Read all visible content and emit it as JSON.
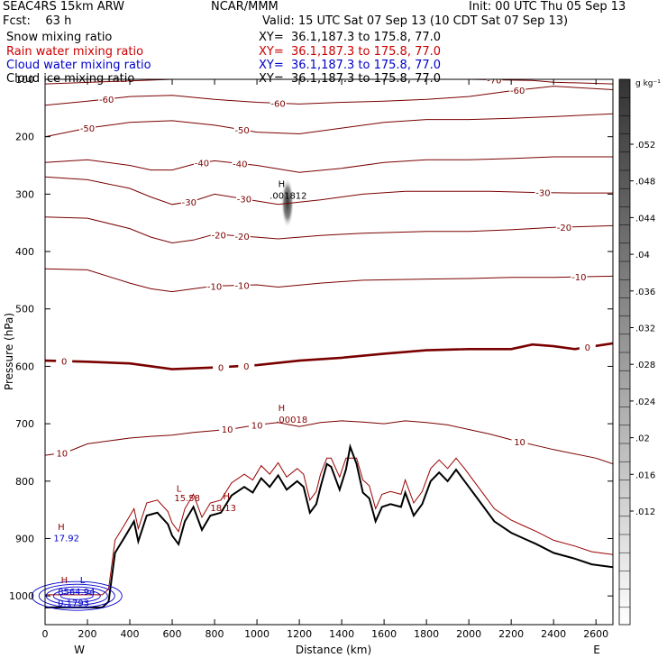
{
  "header": {
    "model": "SEAC4RS 15km ARW",
    "forecast": "Fcst:    63 h",
    "center": "NCAR/MMM",
    "init": "Init: 00 UTC Thu 05 Sep 13",
    "valid": "Valid: 15 UTC Sat 07 Sep 13 (10 CDT Sat 07 Sep 13)",
    "xy": "XY=  36.1,187.3 to 175.8, 77.0",
    "fields": [
      {
        "name": "Snow mixing ratio",
        "color": "#000000"
      },
      {
        "name": "Rain water mixing ratio",
        "color": "#cc0000"
      },
      {
        "name": "Cloud water mixing ratio",
        "color": "#0000cc"
      },
      {
        "name": "Cloud ice mixing ratio",
        "color": "#000000"
      }
    ]
  },
  "colorbar": {
    "unit": "g kg⁻¹",
    "ticks": [
      ".052",
      ".048",
      ".044",
      ".04",
      ".036",
      ".032",
      ".028",
      ".024",
      ".02",
      ".016",
      ".012"
    ]
  },
  "chart_data": {
    "type": "contour cross-section",
    "xlabel": "Distance (km)",
    "ylabel": "Pressure (hPa)",
    "xlim": [
      0,
      2680
    ],
    "ylim": [
      1050,
      100
    ],
    "xticks": [
      0,
      200,
      400,
      600,
      800,
      1000,
      1200,
      1400,
      1600,
      1800,
      2000,
      2200,
      2400,
      2600
    ],
    "yticks": [
      200,
      300,
      400,
      500,
      600,
      700,
      800,
      900,
      1000
    ],
    "yticks_top_label": "100",
    "x_end_labels": {
      "left": "W",
      "right": "E"
    },
    "temperature_contours": [
      {
        "level": -70,
        "points": [
          [
            0,
            108
          ],
          [
            600,
            100
          ],
          [
            2000,
            100
          ],
          [
            2300,
            102
          ],
          [
            2400,
            105
          ],
          [
            2680,
            108
          ]
        ],
        "labels": [
          [
            2120,
            -70
          ]
        ]
      },
      {
        "level": -60,
        "points": [
          [
            0,
            145
          ],
          [
            200,
            138
          ],
          [
            400,
            130
          ],
          [
            600,
            128
          ],
          [
            800,
            135
          ],
          [
            1000,
            140
          ],
          [
            1200,
            143
          ],
          [
            1400,
            140
          ],
          [
            1600,
            138
          ],
          [
            1800,
            135
          ],
          [
            2000,
            130
          ],
          [
            2200,
            120
          ],
          [
            2400,
            112
          ],
          [
            2680,
            118
          ]
        ],
        "labels": [
          [
            290,
            -60
          ],
          [
            1100,
            -60
          ],
          [
            2230,
            -60
          ]
        ]
      },
      {
        "level": -50,
        "points": [
          [
            0,
            200
          ],
          [
            200,
            185
          ],
          [
            400,
            175
          ],
          [
            600,
            172
          ],
          [
            800,
            180
          ],
          [
            1000,
            192
          ],
          [
            1200,
            195
          ],
          [
            1400,
            185
          ],
          [
            1600,
            175
          ],
          [
            1800,
            170
          ],
          [
            2000,
            170
          ],
          [
            2200,
            168
          ],
          [
            2400,
            165
          ],
          [
            2680,
            160
          ]
        ],
        "labels": [
          [
            200,
            -50
          ],
          [
            930,
            -50
          ]
        ]
      },
      {
        "level": -40,
        "points": [
          [
            0,
            245
          ],
          [
            200,
            240
          ],
          [
            400,
            250
          ],
          [
            500,
            258
          ],
          [
            600,
            258
          ],
          [
            700,
            248
          ],
          [
            800,
            242
          ],
          [
            1000,
            250
          ],
          [
            1200,
            262
          ],
          [
            1400,
            255
          ],
          [
            1600,
            245
          ],
          [
            1800,
            240
          ],
          [
            2000,
            240
          ],
          [
            2200,
            238
          ],
          [
            2400,
            235
          ],
          [
            2680,
            235
          ]
        ],
        "labels": [
          [
            740,
            -40
          ],
          [
            920,
            -40
          ]
        ]
      },
      {
        "level": -30,
        "points": [
          [
            0,
            270
          ],
          [
            200,
            275
          ],
          [
            400,
            290
          ],
          [
            500,
            305
          ],
          [
            600,
            318
          ],
          [
            700,
            312
          ],
          [
            800,
            300
          ],
          [
            1000,
            312
          ],
          [
            1100,
            318
          ],
          [
            1300,
            310
          ],
          [
            1500,
            300
          ],
          [
            1700,
            295
          ],
          [
            1900,
            295
          ],
          [
            2100,
            295
          ],
          [
            2300,
            297
          ],
          [
            2500,
            298
          ],
          [
            2680,
            298
          ]
        ],
        "labels": [
          [
            680,
            -30
          ],
          [
            940,
            -30
          ],
          [
            2350,
            -30
          ]
        ]
      },
      {
        "level": -20,
        "points": [
          [
            0,
            340
          ],
          [
            200,
            342
          ],
          [
            400,
            360
          ],
          [
            500,
            375
          ],
          [
            600,
            385
          ],
          [
            700,
            380
          ],
          [
            800,
            370
          ],
          [
            1000,
            375
          ],
          [
            1100,
            378
          ],
          [
            1300,
            372
          ],
          [
            1500,
            368
          ],
          [
            1800,
            365
          ],
          [
            2000,
            365
          ],
          [
            2200,
            362
          ],
          [
            2400,
            358
          ],
          [
            2680,
            355
          ]
        ],
        "labels": [
          [
            820,
            -20
          ],
          [
            930,
            -20
          ],
          [
            2450,
            -20
          ]
        ]
      },
      {
        "level": -10,
        "points": [
          [
            0,
            430
          ],
          [
            200,
            432
          ],
          [
            400,
            455
          ],
          [
            500,
            465
          ],
          [
            600,
            470
          ],
          [
            700,
            465
          ],
          [
            800,
            460
          ],
          [
            1000,
            458
          ],
          [
            1100,
            462
          ],
          [
            1300,
            455
          ],
          [
            1500,
            450
          ],
          [
            1800,
            448
          ],
          [
            2000,
            447
          ],
          [
            2200,
            445
          ],
          [
            2400,
            445
          ],
          [
            2680,
            443
          ]
        ],
        "labels": [
          [
            800,
            -10
          ],
          [
            930,
            -10
          ],
          [
            2520,
            -10
          ]
        ]
      },
      {
        "level": 0,
        "bold": true,
        "points": [
          [
            0,
            590
          ],
          [
            200,
            592
          ],
          [
            400,
            595
          ],
          [
            600,
            605
          ],
          [
            800,
            602
          ],
          [
            1000,
            598
          ],
          [
            1200,
            590
          ],
          [
            1400,
            585
          ],
          [
            1600,
            578
          ],
          [
            1800,
            572
          ],
          [
            2000,
            570
          ],
          [
            2200,
            570
          ],
          [
            2300,
            562
          ],
          [
            2400,
            565
          ],
          [
            2500,
            570
          ],
          [
            2680,
            560
          ]
        ],
        "labels": [
          [
            90,
            0
          ],
          [
            830,
            0
          ],
          [
            950,
            0
          ],
          [
            2560,
            0
          ]
        ]
      },
      {
        "level": 10,
        "points": [
          [
            0,
            755
          ],
          [
            100,
            750
          ],
          [
            200,
            735
          ],
          [
            400,
            725
          ],
          [
            500,
            722
          ],
          [
            600,
            720
          ],
          [
            700,
            715
          ],
          [
            800,
            712
          ],
          [
            900,
            708
          ],
          [
            1000,
            702
          ],
          [
            1100,
            698
          ],
          [
            1200,
            705
          ],
          [
            1300,
            698
          ],
          [
            1400,
            695
          ],
          [
            1500,
            697
          ],
          [
            1600,
            700
          ],
          [
            1700,
            695
          ],
          [
            1800,
            698
          ],
          [
            1900,
            702
          ],
          [
            2000,
            710
          ],
          [
            2100,
            718
          ],
          [
            2200,
            728
          ],
          [
            2400,
            745
          ],
          [
            2600,
            760
          ],
          [
            2680,
            770
          ]
        ],
        "labels": [
          [
            80,
            10
          ],
          [
            860,
            10
          ],
          [
            1000,
            10
          ],
          [
            2240,
            10
          ]
        ]
      }
    ],
    "surface_pressure": [
      [
        0,
        1020
      ],
      [
        270,
        1020
      ],
      [
        300,
        1010
      ],
      [
        330,
        925
      ],
      [
        380,
        895
      ],
      [
        420,
        870
      ],
      [
        440,
        905
      ],
      [
        480,
        860
      ],
      [
        530,
        855
      ],
      [
        580,
        875
      ],
      [
        600,
        895
      ],
      [
        630,
        910
      ],
      [
        660,
        870
      ],
      [
        700,
        845
      ],
      [
        740,
        885
      ],
      [
        780,
        860
      ],
      [
        830,
        855
      ],
      [
        880,
        825
      ],
      [
        940,
        810
      ],
      [
        980,
        820
      ],
      [
        1020,
        795
      ],
      [
        1060,
        810
      ],
      [
        1100,
        790
      ],
      [
        1140,
        815
      ],
      [
        1190,
        800
      ],
      [
        1220,
        810
      ],
      [
        1250,
        855
      ],
      [
        1280,
        840
      ],
      [
        1300,
        810
      ],
      [
        1330,
        770
      ],
      [
        1350,
        775
      ],
      [
        1390,
        815
      ],
      [
        1420,
        780
      ],
      [
        1440,
        740
      ],
      [
        1470,
        770
      ],
      [
        1500,
        820
      ],
      [
        1530,
        830
      ],
      [
        1560,
        870
      ],
      [
        1590,
        845
      ],
      [
        1630,
        840
      ],
      [
        1680,
        845
      ],
      [
        1700,
        820
      ],
      [
        1740,
        860
      ],
      [
        1780,
        840
      ],
      [
        1820,
        800
      ],
      [
        1860,
        785
      ],
      [
        1900,
        800
      ],
      [
        1940,
        780
      ],
      [
        1980,
        800
      ],
      [
        2040,
        830
      ],
      [
        2080,
        850
      ],
      [
        2120,
        870
      ],
      [
        2200,
        890
      ],
      [
        2260,
        900
      ],
      [
        2320,
        910
      ],
      [
        2400,
        925
      ],
      [
        2500,
        935
      ],
      [
        2580,
        945
      ],
      [
        2680,
        950
      ]
    ],
    "annotations": [
      {
        "text": "H",
        "x": 1100,
        "y": 288
      },
      {
        "text": ".001812",
        "x": 1060,
        "y": 308
      },
      {
        "text": "H",
        "x": 1100,
        "y": 678
      },
      {
        "text": ".00018",
        "x": 1090,
        "y": 698
      },
      {
        "text": "L",
        "x": 620,
        "y": 818
      },
      {
        "text": "15.58",
        "x": 610,
        "y": 835
      },
      {
        "text": "H",
        "x": 840,
        "y": 832
      },
      {
        "text": "18.13",
        "x": 780,
        "y": 852
      },
      {
        "text": "H",
        "x": 60,
        "y": 885
      },
      {
        "text": "17.92",
        "x": 40,
        "y": 905
      },
      {
        "text": "H",
        "x": 75,
        "y": 978
      },
      {
        "text": "L",
        "x": 165,
        "y": 978
      },
      {
        "text": "8564.94",
        "x": 60,
        "y": 998
      },
      {
        "text": "0.1793",
        "x": 60,
        "y": 1018
      }
    ]
  }
}
